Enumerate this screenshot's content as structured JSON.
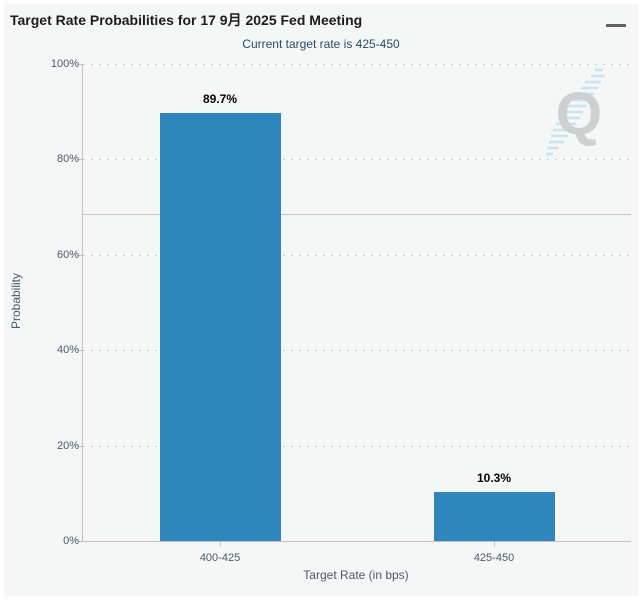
{
  "header": {
    "title": "Target Rate Probabilities for 17 9月 2025 Fed Meeting",
    "subtitle": "Current target rate is 425-450",
    "menu_icon": "hamburger-menu-icon"
  },
  "watermark": {
    "letter": "Q",
    "style": "gray letter with light-blue diagonal streak"
  },
  "colors": {
    "bar": "#2f86bc",
    "panel_background": "#f5f6f6",
    "subtitle_text": "#274b6d",
    "axis_text": "#4a5a6b",
    "axis_line": "#c2c2c2",
    "watermark_gray": "#c7c9ca",
    "watermark_blue": "#a3d6ee"
  },
  "chart_data": {
    "type": "bar",
    "title": "Target Rate Probabilities for 17 9月 2025 Fed Meeting",
    "subtitle": "Current target rate is 425-450",
    "categories": [
      "400-425",
      "425-450"
    ],
    "values": [
      89.7,
      10.3
    ],
    "bar_labels": [
      "89.7%",
      "10.3%"
    ],
    "xlabel": "Target Rate (in bps)",
    "ylabel": "Probability",
    "ylim": [
      0,
      100
    ],
    "ytick_values": [
      0,
      20,
      40,
      60,
      80,
      100
    ],
    "ytick_labels": [
      "0%",
      "20%",
      "40%",
      "60%",
      "80%",
      "100%"
    ],
    "grid": "dotted horizontal gridlines",
    "legend": "none",
    "reference_line_value": 68.6
  }
}
